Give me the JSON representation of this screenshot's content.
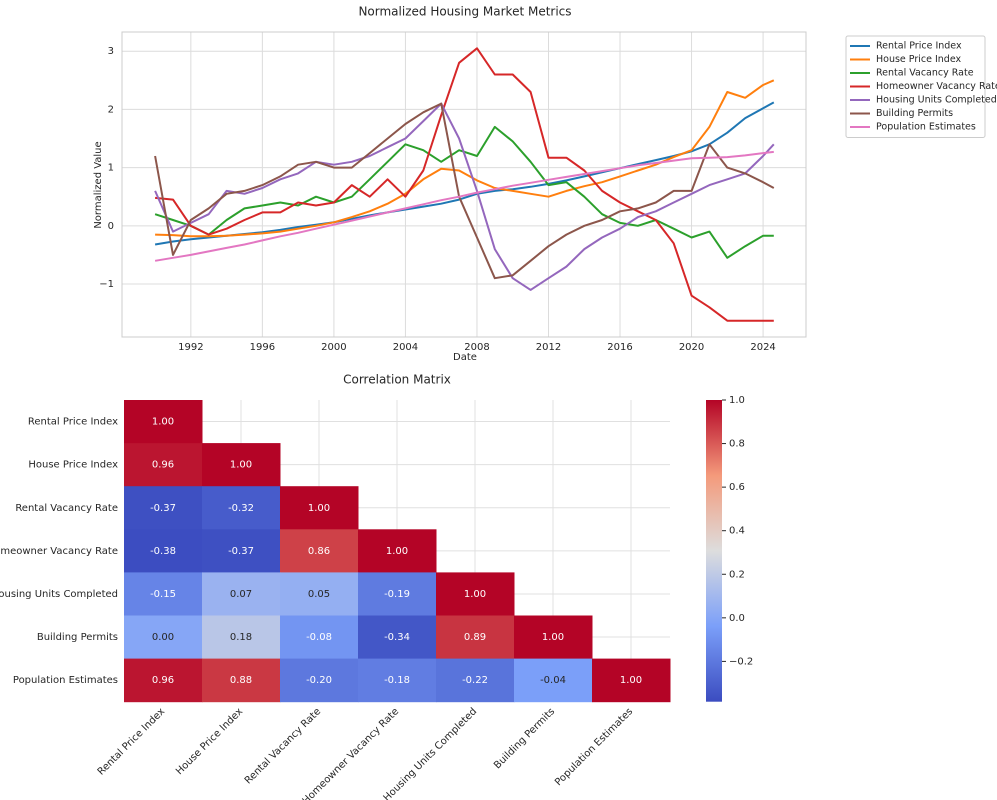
{
  "chart_data": [
    {
      "type": "line",
      "title": "Normalized Housing Market Metrics",
      "xlabel": "Date",
      "ylabel": "Normalized Value",
      "x": [
        1990,
        1991,
        1992,
        1993,
        1994,
        1995,
        1996,
        1997,
        1998,
        1999,
        2000,
        2001,
        2002,
        2003,
        2004,
        2005,
        2006,
        2007,
        2008,
        2009,
        2010,
        2011,
        2012,
        2013,
        2014,
        2015,
        2016,
        2017,
        2018,
        2019,
        2020,
        2021,
        2022,
        2023,
        2024,
        2024.6
      ],
      "xlim": [
        1988.15,
        2026.4
      ],
      "xticks": [
        1992,
        1996,
        2000,
        2004,
        2008,
        2012,
        2016,
        2020,
        2024
      ],
      "ylim": [
        -1.91,
        3.33
      ],
      "yticks": [
        {
          "value": -1,
          "label": "−1"
        },
        0,
        1,
        2,
        3
      ],
      "grid": true,
      "legend": "outside-upper-right",
      "series": [
        {
          "name": "Rental Price Index",
          "color": "#1f77b4",
          "values": [
            -0.32,
            -0.27,
            -0.23,
            -0.2,
            -0.17,
            -0.14,
            -0.11,
            -0.07,
            -0.02,
            0.02,
            0.06,
            0.12,
            0.18,
            0.23,
            0.28,
            0.33,
            0.38,
            0.45,
            0.55,
            0.6,
            0.63,
            0.67,
            0.72,
            0.78,
            0.85,
            0.92,
            0.99,
            1.06,
            1.13,
            1.2,
            1.28,
            1.4,
            1.6,
            1.85,
            2.02,
            2.12
          ]
        },
        {
          "name": "House Price Index",
          "color": "#ff7f0e",
          "values": [
            -0.15,
            -0.16,
            -0.18,
            -0.18,
            -0.17,
            -0.15,
            -0.13,
            -0.1,
            -0.05,
            0.0,
            0.06,
            0.15,
            0.25,
            0.38,
            0.55,
            0.8,
            0.98,
            0.95,
            0.78,
            0.65,
            0.6,
            0.55,
            0.5,
            0.6,
            0.68,
            0.75,
            0.85,
            0.95,
            1.05,
            1.18,
            1.3,
            1.7,
            2.3,
            2.2,
            2.42,
            2.5
          ]
        },
        {
          "name": "Rental Vacancy Rate",
          "color": "#2ca02c",
          "values": [
            0.2,
            0.1,
            0.0,
            -0.15,
            0.1,
            0.3,
            0.35,
            0.4,
            0.35,
            0.5,
            0.4,
            0.5,
            0.8,
            1.1,
            1.4,
            1.3,
            1.1,
            1.3,
            1.2,
            1.7,
            1.45,
            1.1,
            0.7,
            0.75,
            0.5,
            0.2,
            0.05,
            0.0,
            0.1,
            -0.05,
            -0.2,
            -0.1,
            -0.55,
            -0.35,
            -0.17,
            -0.17
          ]
        },
        {
          "name": "Homeowner Vacancy Rate",
          "color": "#d62728",
          "values": [
            0.48,
            0.45,
            0.0,
            -0.15,
            -0.05,
            0.1,
            0.23,
            0.23,
            0.4,
            0.35,
            0.4,
            0.7,
            0.5,
            0.8,
            0.5,
            0.95,
            1.9,
            2.8,
            3.05,
            2.6,
            2.6,
            2.3,
            1.17,
            1.17,
            0.95,
            0.6,
            0.4,
            0.25,
            0.1,
            -0.3,
            -1.2,
            -1.4,
            -1.63,
            -1.63,
            -1.63,
            -1.63
          ]
        },
        {
          "name": "Housing Units Completed",
          "color": "#9467bd",
          "values": [
            0.6,
            -0.1,
            0.05,
            0.2,
            0.6,
            0.55,
            0.65,
            0.8,
            0.9,
            1.1,
            1.05,
            1.1,
            1.2,
            1.35,
            1.5,
            1.8,
            2.1,
            1.5,
            0.6,
            -0.4,
            -0.9,
            -1.1,
            -0.9,
            -0.7,
            -0.4,
            -0.2,
            -0.05,
            0.15,
            0.25,
            0.4,
            0.55,
            0.7,
            0.8,
            0.9,
            1.2,
            1.4
          ]
        },
        {
          "name": "Building Permits",
          "color": "#8c564b",
          "values": [
            1.2,
            -0.5,
            0.1,
            0.3,
            0.55,
            0.6,
            0.7,
            0.85,
            1.05,
            1.1,
            1.0,
            1.0,
            1.25,
            1.5,
            1.75,
            1.95,
            2.1,
            0.5,
            -0.2,
            -0.9,
            -0.85,
            -0.6,
            -0.35,
            -0.15,
            0.0,
            0.1,
            0.25,
            0.3,
            0.4,
            0.6,
            0.6,
            1.4,
            1.0,
            0.9,
            0.75,
            0.65
          ]
        },
        {
          "name": "Population Estimates",
          "color": "#e377c2",
          "values": [
            -0.6,
            -0.55,
            -0.5,
            -0.44,
            -0.38,
            -0.32,
            -0.25,
            -0.18,
            -0.12,
            -0.05,
            0.02,
            0.09,
            0.16,
            0.23,
            0.3,
            0.37,
            0.44,
            0.5,
            0.57,
            0.63,
            0.69,
            0.74,
            0.79,
            0.84,
            0.89,
            0.94,
            0.99,
            1.04,
            1.08,
            1.12,
            1.16,
            1.17,
            1.18,
            1.21,
            1.25,
            1.27
          ]
        }
      ]
    },
    {
      "type": "heatmap",
      "title": "Correlation Matrix",
      "colormap": "coolwarm",
      "x_labels": [
        "Rental Price Index",
        "House Price Index",
        "Rental Vacancy Rate",
        "Homeowner Vacancy Rate",
        "Housing Units Completed",
        "Building Permits",
        "Population Estimates"
      ],
      "y_labels": [
        "Rental Price Index",
        "House Price Index",
        "Rental Vacancy Rate",
        "Homeowner Vacancy Rate",
        "Housing Units Completed",
        "Building Permits",
        "Population Estimates"
      ],
      "values": [
        [
          1,
          null,
          null,
          null,
          null,
          null,
          null
        ],
        [
          0.96,
          1,
          null,
          null,
          null,
          null,
          null
        ],
        [
          -0.37,
          -0.32,
          1,
          null,
          null,
          null,
          null
        ],
        [
          -0.38,
          -0.37,
          0.86,
          1,
          null,
          null,
          null
        ],
        [
          -0.15,
          0.07,
          0.05,
          -0.19,
          1,
          null,
          null
        ],
        [
          0.0,
          0.18,
          -0.08,
          -0.34,
          0.89,
          1,
          null
        ],
        [
          0.96,
          0.88,
          -0.2,
          -0.18,
          -0.22,
          -0.04,
          1
        ]
      ],
      "value_labels": [
        [
          "1.00",
          null,
          null,
          null,
          null,
          null,
          null
        ],
        [
          "0.96",
          "1.00",
          null,
          null,
          null,
          null,
          null
        ],
        [
          "-0.37",
          "-0.32",
          "1.00",
          null,
          null,
          null,
          null
        ],
        [
          "-0.38",
          "-0.37",
          "0.86",
          "1.00",
          null,
          null,
          null
        ],
        [
          "-0.15",
          "0.07",
          "0.05",
          "-0.19",
          "1.00",
          null,
          null
        ],
        [
          "0.00",
          "0.18",
          "-0.08",
          "-0.34",
          "0.89",
          "1.00",
          null
        ],
        [
          "0.96",
          "0.88",
          "-0.20",
          "-0.18",
          "-0.22",
          "-0.04",
          "1.00"
        ]
      ],
      "zlim": [
        -0.385,
        1.0
      ],
      "zticks": [
        {
          "value": -0.2,
          "label": "−0.2"
        },
        {
          "value": 0,
          "label": "0.0"
        },
        {
          "value": 0.2,
          "label": "0.2"
        },
        {
          "value": 0.4,
          "label": "0.4"
        },
        {
          "value": 0.6,
          "label": "0.6"
        },
        {
          "value": 0.8,
          "label": "0.8"
        },
        {
          "value": 1,
          "label": "1.0"
        }
      ]
    }
  ]
}
